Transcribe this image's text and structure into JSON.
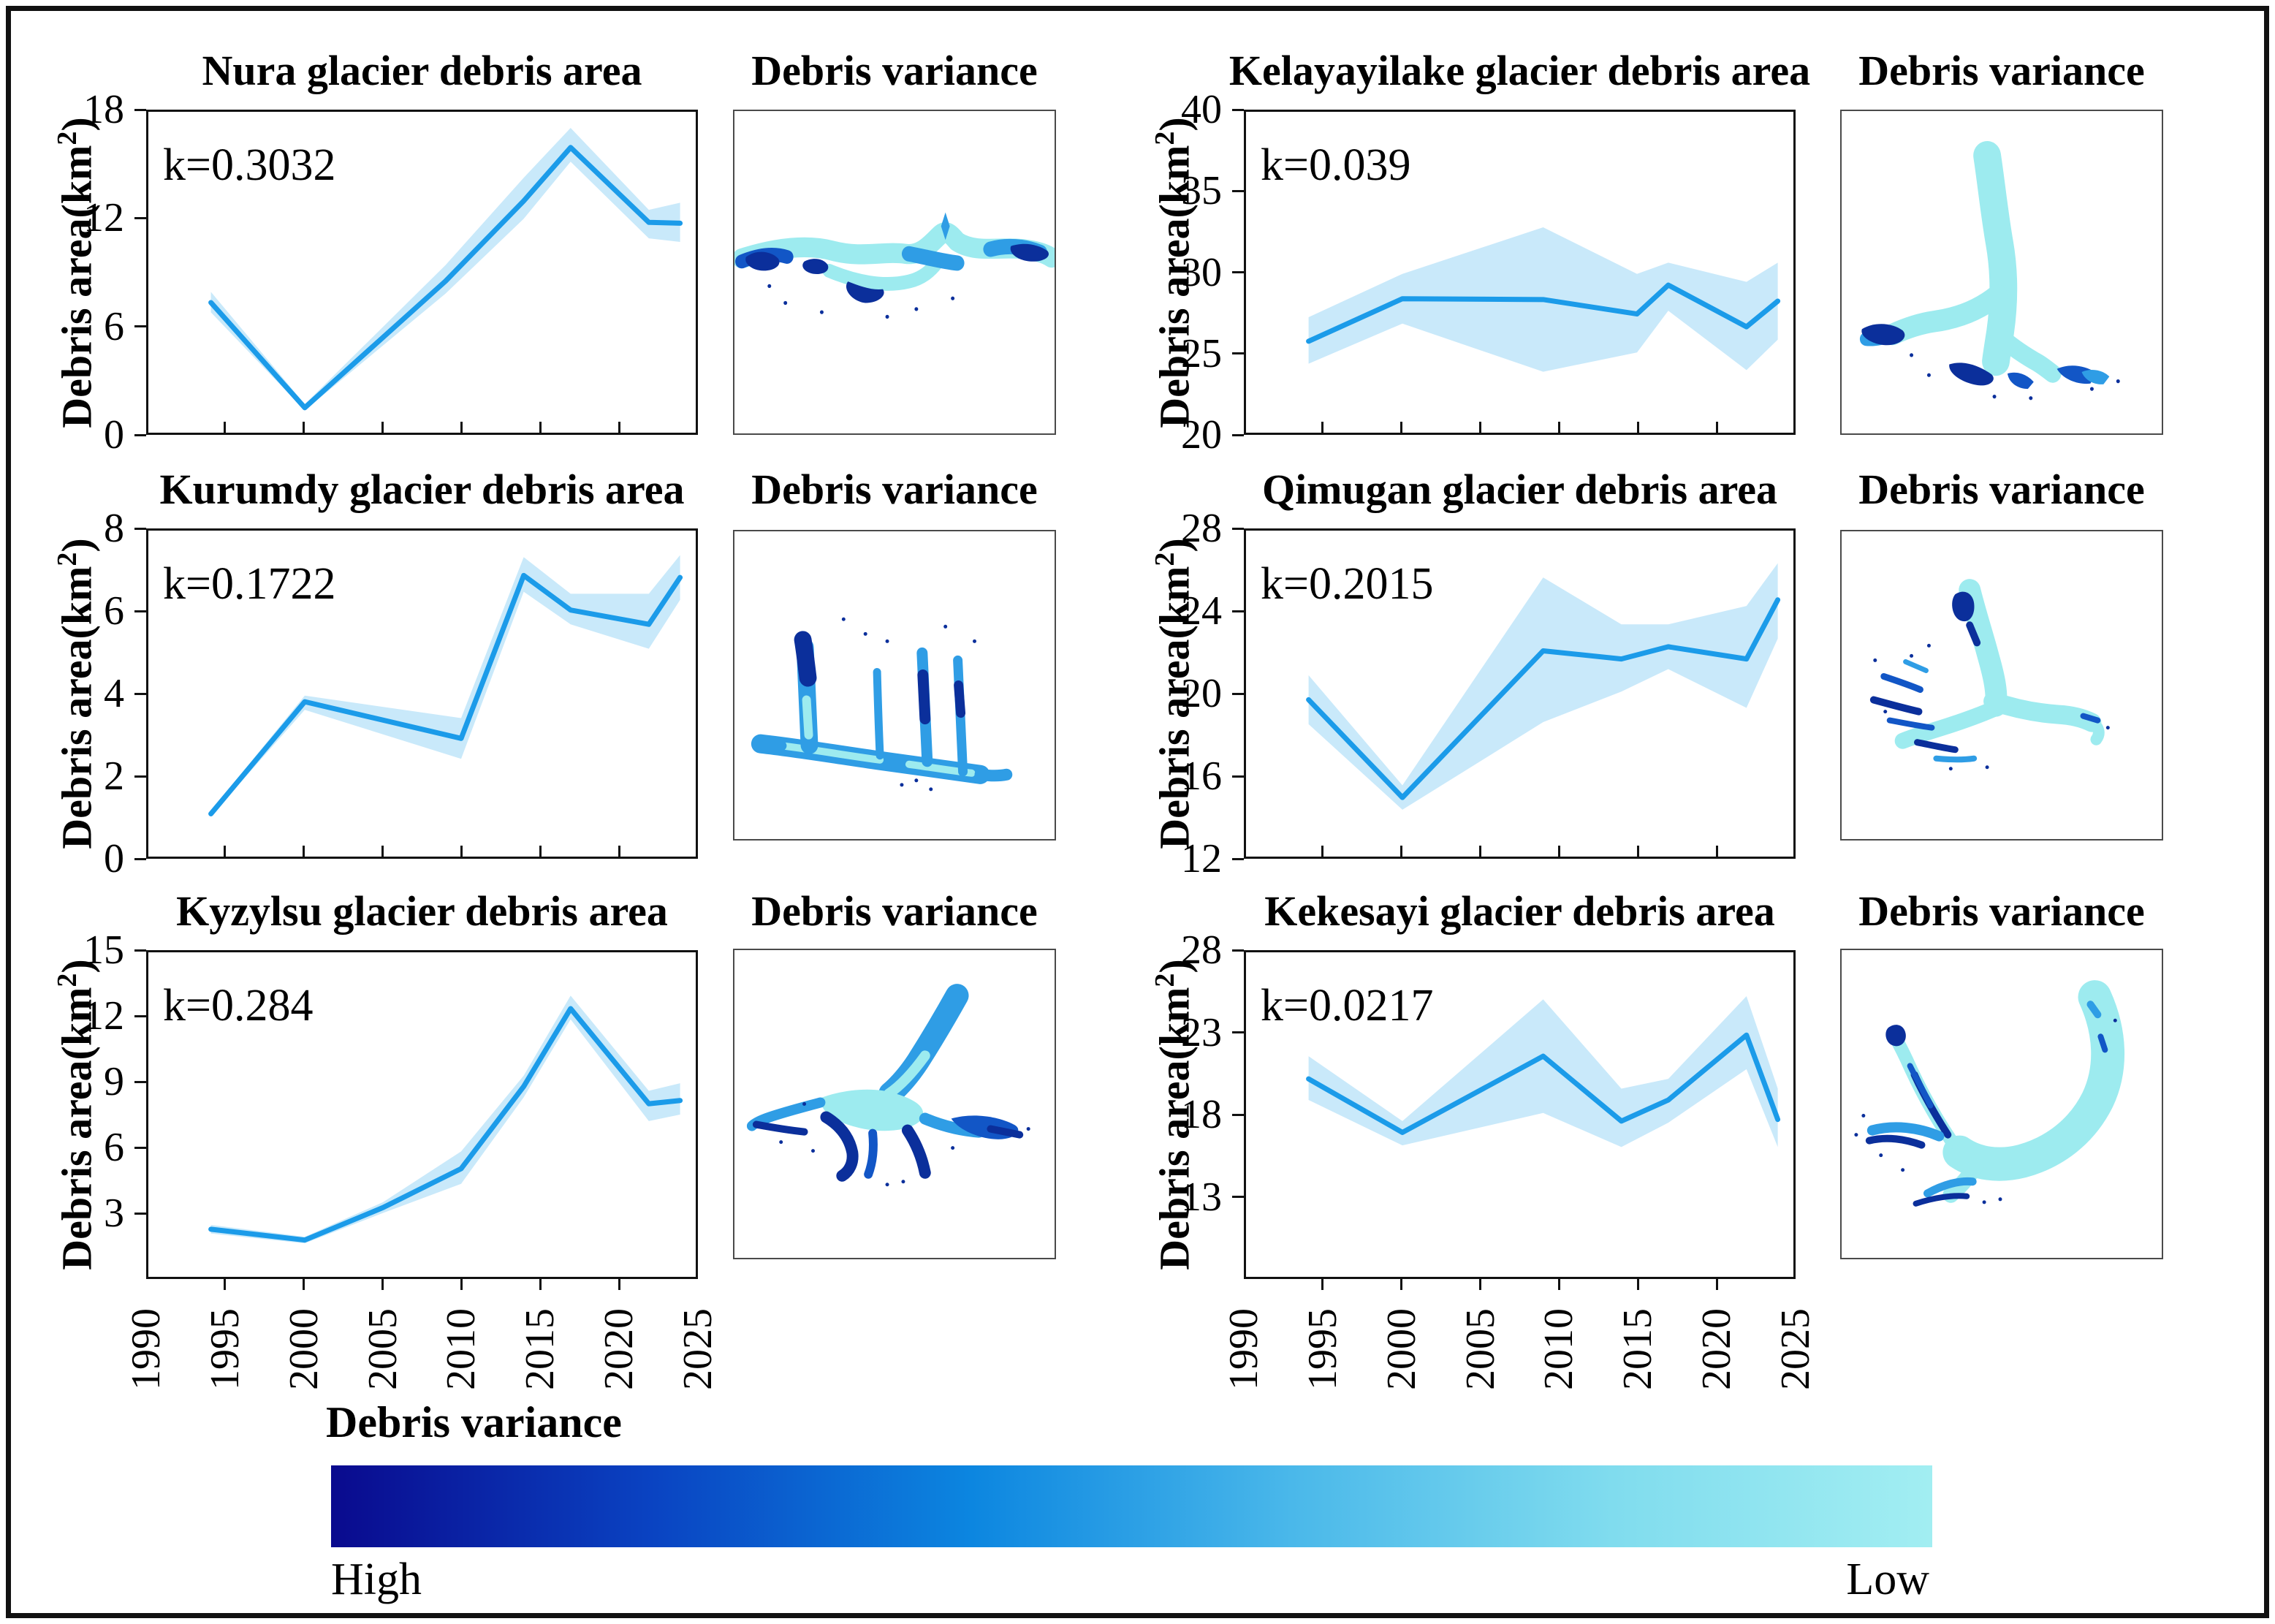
{
  "shared": {
    "ylabel_prefix": "Debris area(km",
    "ylabel_sup": "2",
    "ylabel_suffix": ")"
  },
  "colors": {
    "line": "#1b9be9",
    "band": "#c9e9fa",
    "map_cyan": "#9debef",
    "map_blue": "#2f9de5",
    "map_mid": "#1256c6",
    "map_navy": "#0b2f9b"
  },
  "axes": {
    "x_range": [
      1990,
      2025
    ],
    "x_tick_years": [
      1990,
      1995,
      2000,
      2005,
      2010,
      2015,
      2020,
      2025
    ],
    "x_minor_tick_years": [
      1995,
      2000,
      2005,
      2010,
      2015,
      2020
    ]
  },
  "chart_data": [
    {
      "type": "line",
      "name": "nura",
      "title": "Nura glacier debris area",
      "variance_title": "Debris variance",
      "k_label": "k=0.3032",
      "ylim": [
        0,
        18
      ],
      "yticks": [
        0,
        6,
        12,
        18
      ],
      "years": [
        1994,
        2000,
        2009,
        2014,
        2017,
        2022,
        2024
      ],
      "values": [
        7.3,
        1.4,
        8.5,
        13.0,
        16.0,
        11.8,
        11.75
      ],
      "band_upper": [
        7.9,
        1.6,
        9.4,
        14.3,
        17.1,
        12.5,
        12.9
      ],
      "band_lower": [
        6.75,
        1.25,
        7.8,
        12.0,
        15.2,
        10.9,
        10.7
      ],
      "shape": "nura"
    },
    {
      "type": "line",
      "name": "kelayayilake",
      "title": "Kelayayilake glacier debris area",
      "variance_title": "Debris variance",
      "k_label": "k=0.039",
      "ylim": [
        20,
        40
      ],
      "yticks": [
        20,
        25,
        30,
        35,
        40
      ],
      "years": [
        1994,
        2000,
        2009,
        2015,
        2017,
        2022,
        2024
      ],
      "values": [
        25.7,
        28.35,
        28.3,
        27.4,
        29.2,
        26.6,
        28.2
      ],
      "band_upper": [
        27.2,
        29.9,
        32.8,
        29.9,
        30.6,
        29.4,
        30.6
      ],
      "band_lower": [
        24.3,
        26.8,
        23.8,
        25.0,
        27.6,
        23.9,
        25.8
      ],
      "shape": "kelayayilake"
    },
    {
      "type": "line",
      "name": "kurumdy",
      "title": "Kurumdy glacier debris area",
      "variance_title": "Debris variance",
      "k_label": "k=0.1722",
      "ylim": [
        0,
        8
      ],
      "yticks": [
        0,
        2,
        4,
        6,
        8
      ],
      "years": [
        1994,
        2000,
        2010,
        2014,
        2017,
        2022,
        2024
      ],
      "values": [
        1.05,
        3.8,
        2.9,
        6.9,
        6.05,
        5.7,
        6.85
      ],
      "band_upper": [
        1.12,
        3.95,
        3.4,
        7.35,
        6.45,
        6.45,
        7.4
      ],
      "band_lower": [
        1.0,
        3.6,
        2.4,
        6.5,
        5.7,
        5.1,
        6.3
      ],
      "shape": "kurumdy"
    },
    {
      "type": "line",
      "name": "qimugan",
      "title": "Qimugan glacier debris area",
      "variance_title": "Debris variance",
      "k_label": "k=0.2015",
      "ylim": [
        12,
        28
      ],
      "yticks": [
        12,
        16,
        20,
        24,
        28
      ],
      "years": [
        1994,
        2000,
        2009,
        2014,
        2017,
        2022,
        2024
      ],
      "values": [
        19.7,
        14.9,
        22.1,
        21.7,
        22.3,
        21.7,
        24.6
      ],
      "band_upper": [
        20.9,
        15.5,
        25.7,
        23.4,
        23.4,
        24.3,
        26.4
      ],
      "band_lower": [
        18.5,
        14.3,
        18.6,
        20.1,
        21.2,
        19.3,
        22.7
      ],
      "shape": "qimugan"
    },
    {
      "type": "line",
      "name": "kyzylsu",
      "title": "Kyzylsu glacier debris area",
      "variance_title": "Debris variance",
      "k_label": "k=0.284",
      "ylim": [
        0,
        15
      ],
      "yticks": [
        3,
        6,
        9,
        12,
        15
      ],
      "years": [
        1994,
        2000,
        2005,
        2010,
        2014,
        2017,
        2022,
        2024
      ],
      "values": [
        2.2,
        1.7,
        3.2,
        5.0,
        8.8,
        12.4,
        8.0,
        8.15
      ],
      "band_upper": [
        2.4,
        1.85,
        3.45,
        5.8,
        9.3,
        13.0,
        8.6,
        8.95
      ],
      "band_lower": [
        2.0,
        1.55,
        2.95,
        4.3,
        8.3,
        11.9,
        7.2,
        7.5
      ],
      "shape": "kyzylsu"
    },
    {
      "type": "line",
      "name": "kekesayi",
      "title": "Kekesayi glacier debris area",
      "variance_title": "Debris variance",
      "k_label": "k=0.0217",
      "ylim": [
        8,
        28
      ],
      "yticks": [
        13,
        18,
        23,
        28
      ],
      "years": [
        1994,
        2000,
        2009,
        2014,
        2017,
        2022,
        2024
      ],
      "values": [
        20.2,
        16.9,
        21.6,
        17.6,
        18.9,
        22.9,
        17.7
      ],
      "band_upper": [
        21.6,
        17.6,
        25.1,
        19.6,
        20.2,
        25.3,
        19.6
      ],
      "band_lower": [
        18.9,
        16.1,
        18.1,
        16.0,
        17.5,
        20.8,
        16.0
      ],
      "shape": "kekesayi"
    }
  ],
  "colorbar": {
    "title": "Debris variance",
    "high_label": "High",
    "low_label": "Low",
    "gradient_stops": [
      "#0a0a8e",
      "#0a43c2",
      "#0c86e0",
      "#4ab8ea",
      "#80dcee",
      "#a2eef2"
    ]
  }
}
